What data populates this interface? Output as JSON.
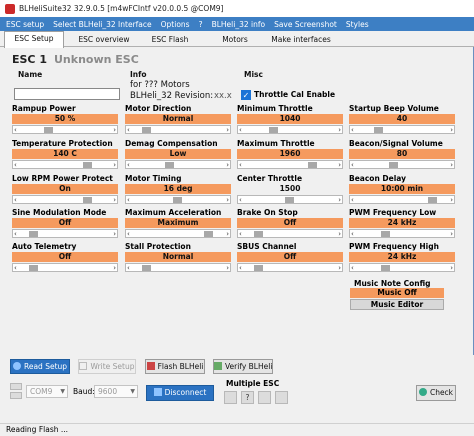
{
  "titlebar": {
    "title": "BLHeliSuite32 32.9.0.5  [m4wFCIntf v20.0.0.5 @COM9]"
  },
  "menu": [
    "ESC setup",
    "Select BLHeli_32 Interface",
    "Options",
    "?",
    "BLHeli_32 info",
    "Save Screenshot",
    "Styles"
  ],
  "tabs": [
    "ESC Setup",
    "ESC overview",
    "ESC Flash",
    "Motors",
    "Make interfaces"
  ],
  "esc": {
    "title": "ESC 1",
    "subtitle": "Unknown ESC"
  },
  "name_group": {
    "label": "Name",
    "value": ""
  },
  "info_group": {
    "label": "Info",
    "line1": "for  ???  Motors",
    "line2_label": "BLHeli_32 Revision:",
    "line2_value": "xx.x"
  },
  "misc_group": {
    "label": "Misc",
    "throttle_cal_label": "Throttle Cal Enable",
    "throttle_cal_checked": "✓"
  },
  "settings": [
    {
      "label": "Rampup Power",
      "value": "50 %",
      "pos": 0.3
    },
    {
      "label": "Motor Direction",
      "value": "Normal",
      "pos": 0.1
    },
    {
      "label": "Minimum Throttle",
      "value": "1040",
      "pos": 0.3
    },
    {
      "label": "Startup Beep Volume",
      "value": "40",
      "pos": 0.2
    },
    {
      "label": "Temperature Protection",
      "value": "140 C",
      "pos": 0.8
    },
    {
      "label": "Demag Compensation",
      "value": "Low",
      "pos": 0.4
    },
    {
      "label": "Maximum Throttle",
      "value": "1960",
      "pos": 0.8
    },
    {
      "label": "Beacon/Signal Volume",
      "value": "80",
      "pos": 0.4
    },
    {
      "label": "Low RPM Power Protect",
      "value": "On",
      "pos": 0.8
    },
    {
      "label": "Motor Timing",
      "value": "16 deg",
      "pos": 0.5
    },
    {
      "label": "Center Throttle",
      "value": "1500",
      "pos": 0.5,
      "plain": true
    },
    {
      "label": "Beacon Delay",
      "value": "10:00 min",
      "pos": 0.9
    },
    {
      "label": "Sine Modulation Mode",
      "value": "Off",
      "pos": 0.1
    },
    {
      "label": "Maximum Acceleration",
      "value": "Maximum",
      "pos": 0.9
    },
    {
      "label": "Brake On Stop",
      "value": "Off",
      "pos": 0.1
    },
    {
      "label": "PWM Frequency Low",
      "value": "24 kHz",
      "pos": 0.3
    },
    {
      "label": "Auto Telemetry",
      "value": "Off",
      "pos": 0.1
    },
    {
      "label": "Stall Protection",
      "value": "Normal",
      "pos": 0.1
    },
    {
      "label": "SBUS Channel",
      "value": "Off",
      "pos": 0.1
    },
    {
      "label": "PWM Frequency High",
      "value": "24 kHz",
      "pos": 0.3
    }
  ],
  "music": {
    "label": "Music Note Config",
    "value": "Music Off",
    "editor_label": "Music Editor"
  },
  "buttons": {
    "read_setup": "Read Setup",
    "write_setup": "Write Setup",
    "flash_blheli": "Flash BLHeli",
    "verify_blheli": "Verify BLHeli",
    "disconnect": "Disconnect",
    "check": "Check"
  },
  "connection": {
    "port": "COM9",
    "baud_label": "Baud:",
    "baud": "9600"
  },
  "multiple_esc": {
    "label": "Multiple ESC",
    "q": "?"
  },
  "status": "Reading Flash ...",
  "colors": {
    "accent": "#3d7fc4",
    "value_orange": "#f59a5e",
    "button_blue": "#2b72c2"
  }
}
